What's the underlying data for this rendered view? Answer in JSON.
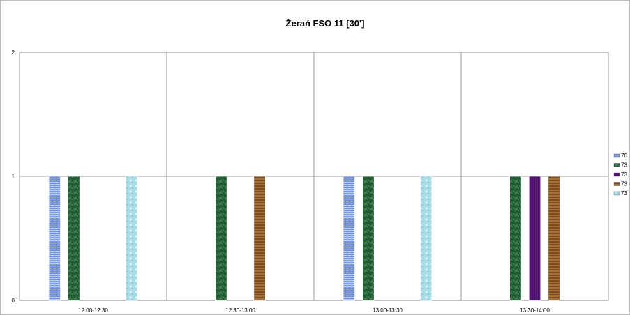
{
  "chart_data": {
    "type": "bar",
    "title": "Żerań FSO 11 [30']",
    "xlabel": "",
    "ylabel": "",
    "ylim": [
      0,
      2
    ],
    "yticks": [
      "0",
      "1",
      "2"
    ],
    "grid": true,
    "legend_position": "right",
    "categories": [
      "12:00-12:30",
      "12:30-13:00",
      "13:00-13:30",
      "13:30-14:00"
    ],
    "series": [
      {
        "name": "70",
        "color": "#6f8fd6",
        "values": [
          1,
          0,
          1,
          0
        ]
      },
      {
        "name": "73",
        "color": "#1f5a32",
        "values": [
          1,
          1,
          1,
          1
        ]
      },
      {
        "name": "73",
        "color": "#5a1a7a",
        "values": [
          0,
          0,
          0,
          1
        ]
      },
      {
        "name": "73",
        "color": "#8b5a2b",
        "values": [
          0,
          1,
          0,
          1
        ]
      },
      {
        "name": "73",
        "color": "#a8dde8",
        "values": [
          1,
          0,
          1,
          0
        ]
      }
    ]
  }
}
